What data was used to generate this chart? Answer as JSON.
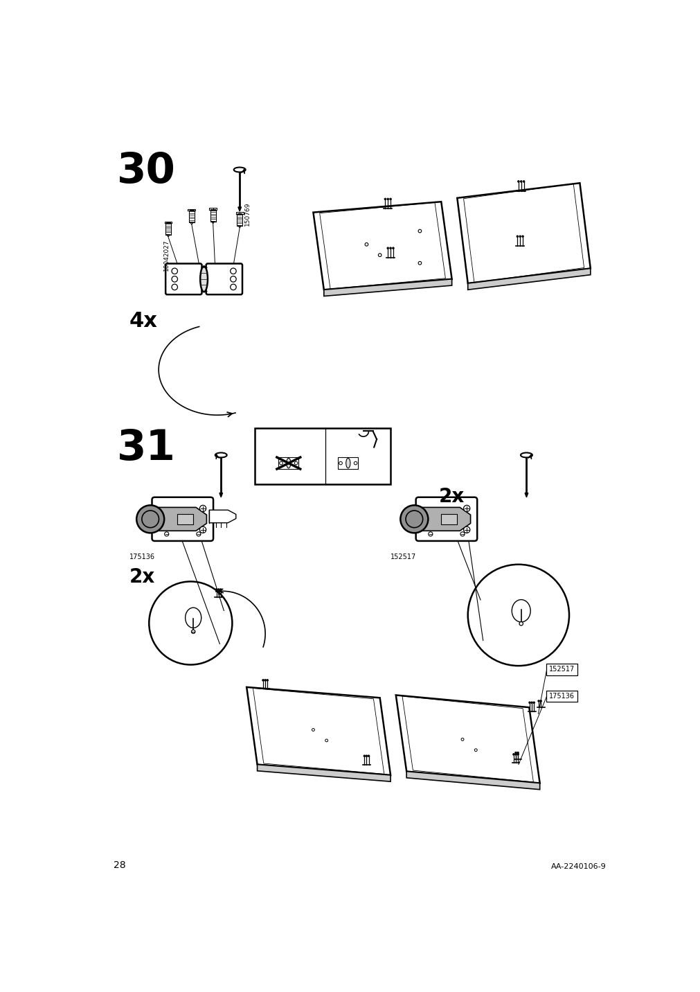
{
  "page_number": "28",
  "doc_number": "AA-2240106-9",
  "bg": "#ffffff",
  "step30_num": "30",
  "step31_num": "31",
  "label_10042027": "10042027",
  "label_150769": "150769",
  "label_175136": "175136",
  "label_152517": "152517",
  "qty_4x": "4x",
  "qty_2x": "2x"
}
